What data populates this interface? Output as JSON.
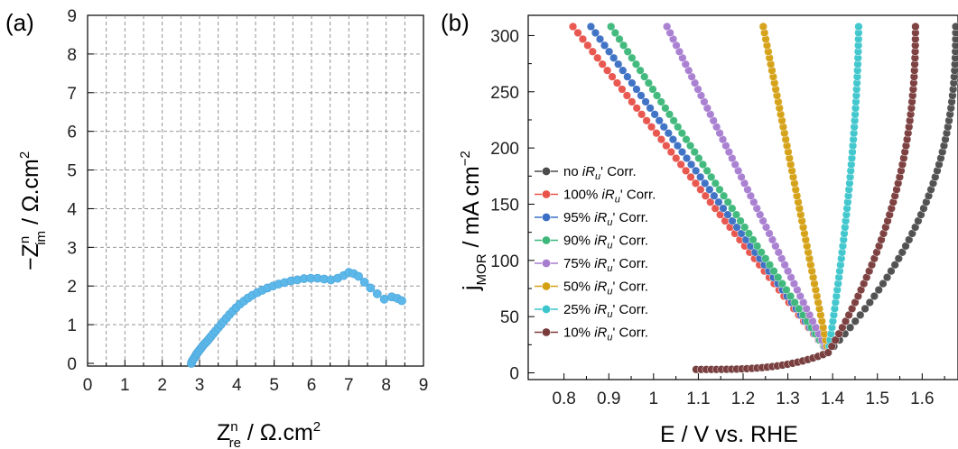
{
  "panel_a": {
    "label": "(a)"
  },
  "panel_b": {
    "label": "(b)"
  },
  "chart_data": [
    {
      "type": "scatter",
      "panel": "(a)",
      "xlabel_main": "Z",
      "xlabel_sup": "n",
      "xlabel_sub": "re",
      "xlabel_unit": " / Ω.cm",
      "xlabel_unit_sup": "2",
      "ylabel_prefix": "−Z",
      "ylabel_sup": "n",
      "ylabel_sub": "im",
      "ylabel_unit": " / Ω.cm",
      "ylabel_unit_sup": "2",
      "xlim": [
        0,
        9
      ],
      "ylim": [
        0,
        9
      ],
      "xticks": [
        0,
        0.5,
        1,
        1.5,
        2,
        2.5,
        3,
        3.5,
        4,
        4.5,
        5,
        5.5,
        6,
        6.5,
        7,
        7.5,
        8,
        8.5,
        9
      ],
      "yticks": [
        0,
        1,
        2,
        3,
        4,
        5,
        6,
        7,
        8,
        9
      ],
      "grid": true,
      "color": "#5DB8EA",
      "points": [
        [
          2.78,
          0.0
        ],
        [
          2.8,
          0.05
        ],
        [
          2.83,
          0.1
        ],
        [
          2.86,
          0.14
        ],
        [
          2.89,
          0.19
        ],
        [
          2.92,
          0.24
        ],
        [
          2.95,
          0.28
        ],
        [
          2.99,
          0.33
        ],
        [
          3.03,
          0.38
        ],
        [
          3.07,
          0.43
        ],
        [
          3.11,
          0.48
        ],
        [
          3.16,
          0.53
        ],
        [
          3.21,
          0.58
        ],
        [
          3.26,
          0.64
        ],
        [
          3.31,
          0.7
        ],
        [
          3.37,
          0.77
        ],
        [
          3.43,
          0.84
        ],
        [
          3.5,
          0.92
        ],
        [
          3.57,
          1.0
        ],
        [
          3.64,
          1.08
        ],
        [
          3.72,
          1.17
        ],
        [
          3.8,
          1.26
        ],
        [
          3.89,
          1.35
        ],
        [
          3.98,
          1.44
        ],
        [
          4.08,
          1.53
        ],
        [
          4.19,
          1.61
        ],
        [
          4.3,
          1.69
        ],
        [
          4.42,
          1.76
        ],
        [
          4.55,
          1.83
        ],
        [
          4.68,
          1.89
        ],
        [
          4.82,
          1.95
        ],
        [
          4.97,
          2.0
        ],
        [
          5.12,
          2.05
        ],
        [
          5.28,
          2.09
        ],
        [
          5.45,
          2.13
        ],
        [
          5.62,
          2.16
        ],
        [
          5.8,
          2.19
        ],
        [
          5.98,
          2.2
        ],
        [
          6.16,
          2.2
        ],
        [
          6.34,
          2.18
        ],
        [
          6.52,
          2.16
        ],
        [
          6.7,
          2.2
        ],
        [
          6.86,
          2.27
        ],
        [
          7.0,
          2.35
        ],
        [
          7.13,
          2.32
        ],
        [
          7.26,
          2.25
        ],
        [
          7.42,
          2.1
        ],
        [
          7.58,
          1.95
        ],
        [
          7.76,
          1.8
        ],
        [
          7.95,
          1.66
        ],
        [
          8.15,
          1.72
        ],
        [
          8.3,
          1.68
        ],
        [
          8.42,
          1.62
        ]
      ]
    },
    {
      "type": "line",
      "panel": "(b)",
      "xlabel": "E / V vs. RHE",
      "ylabel_main": "j",
      "ylabel_sub": "MOR",
      "ylabel_unit": " / mA cm",
      "ylabel_unit_sup": "−2",
      "xlim": [
        0.72,
        1.68
      ],
      "ylim": [
        -6,
        318
      ],
      "xticks": [
        0.8,
        0.9,
        1.0,
        1.1,
        1.2,
        1.3,
        1.4,
        1.5,
        1.6
      ],
      "xtick_labels": [
        "0.8",
        "0.9",
        "1",
        "1.1",
        "1.2",
        "1.3",
        "1.4",
        "1.5",
        "1.6"
      ],
      "yticks": [
        0,
        50,
        100,
        150,
        200,
        250,
        300
      ],
      "grid": false,
      "legend_position": "middle-left",
      "series": [
        {
          "name": "no iRu' Corr.",
          "pre": "no ",
          "suffix": "' Corr.",
          "color": "#4C4C4C",
          "x_top": 1.675,
          "curve": 0.62
        },
        {
          "name": "100% iRu' Corr.",
          "pre": "100% ",
          "suffix": "' Corr.",
          "color": "#E8524A",
          "x_top": 0.82,
          "curve": 0.0
        },
        {
          "name": "95% iRu' Corr.",
          "pre": "95% ",
          "suffix": "' Corr.",
          "color": "#3A6FC4",
          "x_top": 0.86,
          "curve": 0.0
        },
        {
          "name": "90% iRu' Corr.",
          "pre": "90% ",
          "suffix": "' Corr.",
          "color": "#3DB87A",
          "x_top": 0.905,
          "curve": 0.0
        },
        {
          "name": "75% iRu' Corr.",
          "pre": "75% ",
          "suffix": "' Corr.",
          "color": "#A77DD0",
          "x_top": 1.03,
          "curve": 0.0
        },
        {
          "name": "50% iRu' Corr.",
          "pre": "50% ",
          "suffix": "' Corr.",
          "color": "#D4A012",
          "x_top": 1.245,
          "curve": 0.1
        },
        {
          "name": "25% iRu' Corr.",
          "pre": "25% ",
          "suffix": "' Corr.",
          "color": "#3CC6CC",
          "x_top": 1.458,
          "curve": 0.3
        },
        {
          "name": "10% iRu' Corr.",
          "pre": "10% ",
          "suffix": "' Corr.",
          "color": "#7A3B3B",
          "x_top": 1.585,
          "curve": 0.55
        }
      ],
      "legend_italic_i": "iR",
      "legend_italic_sub": "u",
      "baseline_start": [
        1.095,
        3
      ],
      "knee": [
        1.39,
        18
      ],
      "top_j": 308
    }
  ]
}
